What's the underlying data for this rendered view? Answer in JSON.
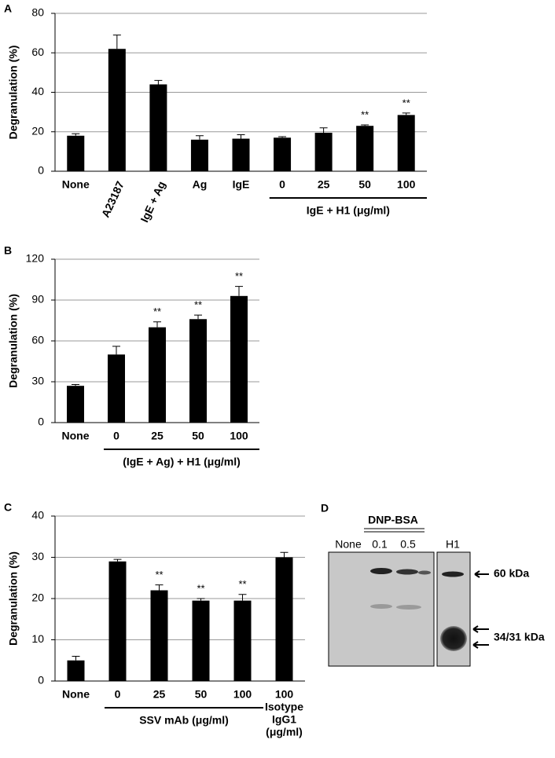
{
  "chart_data": [
    {
      "type": "bar",
      "panel_label": "A",
      "y_label": "Degranulation (%)",
      "categories": [
        "None",
        "A23187",
        "IgE + Ag",
        "Ag",
        "IgE",
        "0",
        "25",
        "50",
        "100"
      ],
      "values": [
        18,
        62,
        44,
        16,
        16.5,
        17,
        19.5,
        23,
        28.5
      ],
      "errors": [
        1,
        7,
        2,
        2,
        2,
        0.5,
        2.5,
        0.5,
        1
      ],
      "significance": [
        null,
        null,
        null,
        null,
        null,
        null,
        null,
        "**",
        "**"
      ],
      "groups": [
        {
          "label": "IgE + H1 (μg/ml)",
          "from": 5,
          "to": 8
        }
      ],
      "color": "#000000",
      "ylim": [
        0,
        80
      ],
      "yticks": [
        0,
        20,
        40,
        60,
        80
      ],
      "grid": true
    },
    {
      "type": "bar",
      "panel_label": "B",
      "y_label": "Degranulation (%)",
      "categories": [
        "None",
        "0",
        "25",
        "50",
        "100"
      ],
      "values": [
        27,
        50,
        70,
        76,
        93
      ],
      "errors": [
        1,
        6,
        4,
        3,
        7
      ],
      "significance": [
        null,
        null,
        "**",
        "**",
        "**"
      ],
      "groups": [
        {
          "label": "(IgE + Ag) + H1 (μg/ml)",
          "from": 1,
          "to": 4
        }
      ],
      "color": "#000000",
      "ylim": [
        0,
        120
      ],
      "yticks": [
        0,
        30,
        60,
        90,
        120
      ],
      "grid": true
    },
    {
      "type": "bar",
      "panel_label": "C",
      "y_label": "Degranulation (%)",
      "categories": [
        "None",
        "0",
        "25",
        "50",
        "100",
        "100"
      ],
      "values": [
        5,
        29,
        22,
        19.5,
        19.5,
        30
      ],
      "errors": [
        1,
        0.5,
        1.3,
        0.5,
        1.5,
        1.2
      ],
      "significance": [
        null,
        null,
        "**",
        "**",
        "**",
        null
      ],
      "groups": [
        {
          "label": "SSV mAb (μg/ml)",
          "from": 1,
          "to": 4
        }
      ],
      "notes": [
        {
          "lines": [
            "Isotype",
            "IgG1",
            "(μg/ml)"
          ],
          "from": 5,
          "to": 5
        }
      ],
      "color": "#000000",
      "ylim": [
        0,
        40
      ],
      "yticks": [
        0,
        10,
        20,
        30,
        40
      ],
      "grid": true
    }
  ],
  "blot": {
    "panel_label": "D",
    "group_label": "DNP-BSA",
    "lanes": [
      "None",
      "0.1",
      "0.5",
      "H1"
    ],
    "markers": [
      "60 kDa",
      "34/31 kDa"
    ]
  }
}
